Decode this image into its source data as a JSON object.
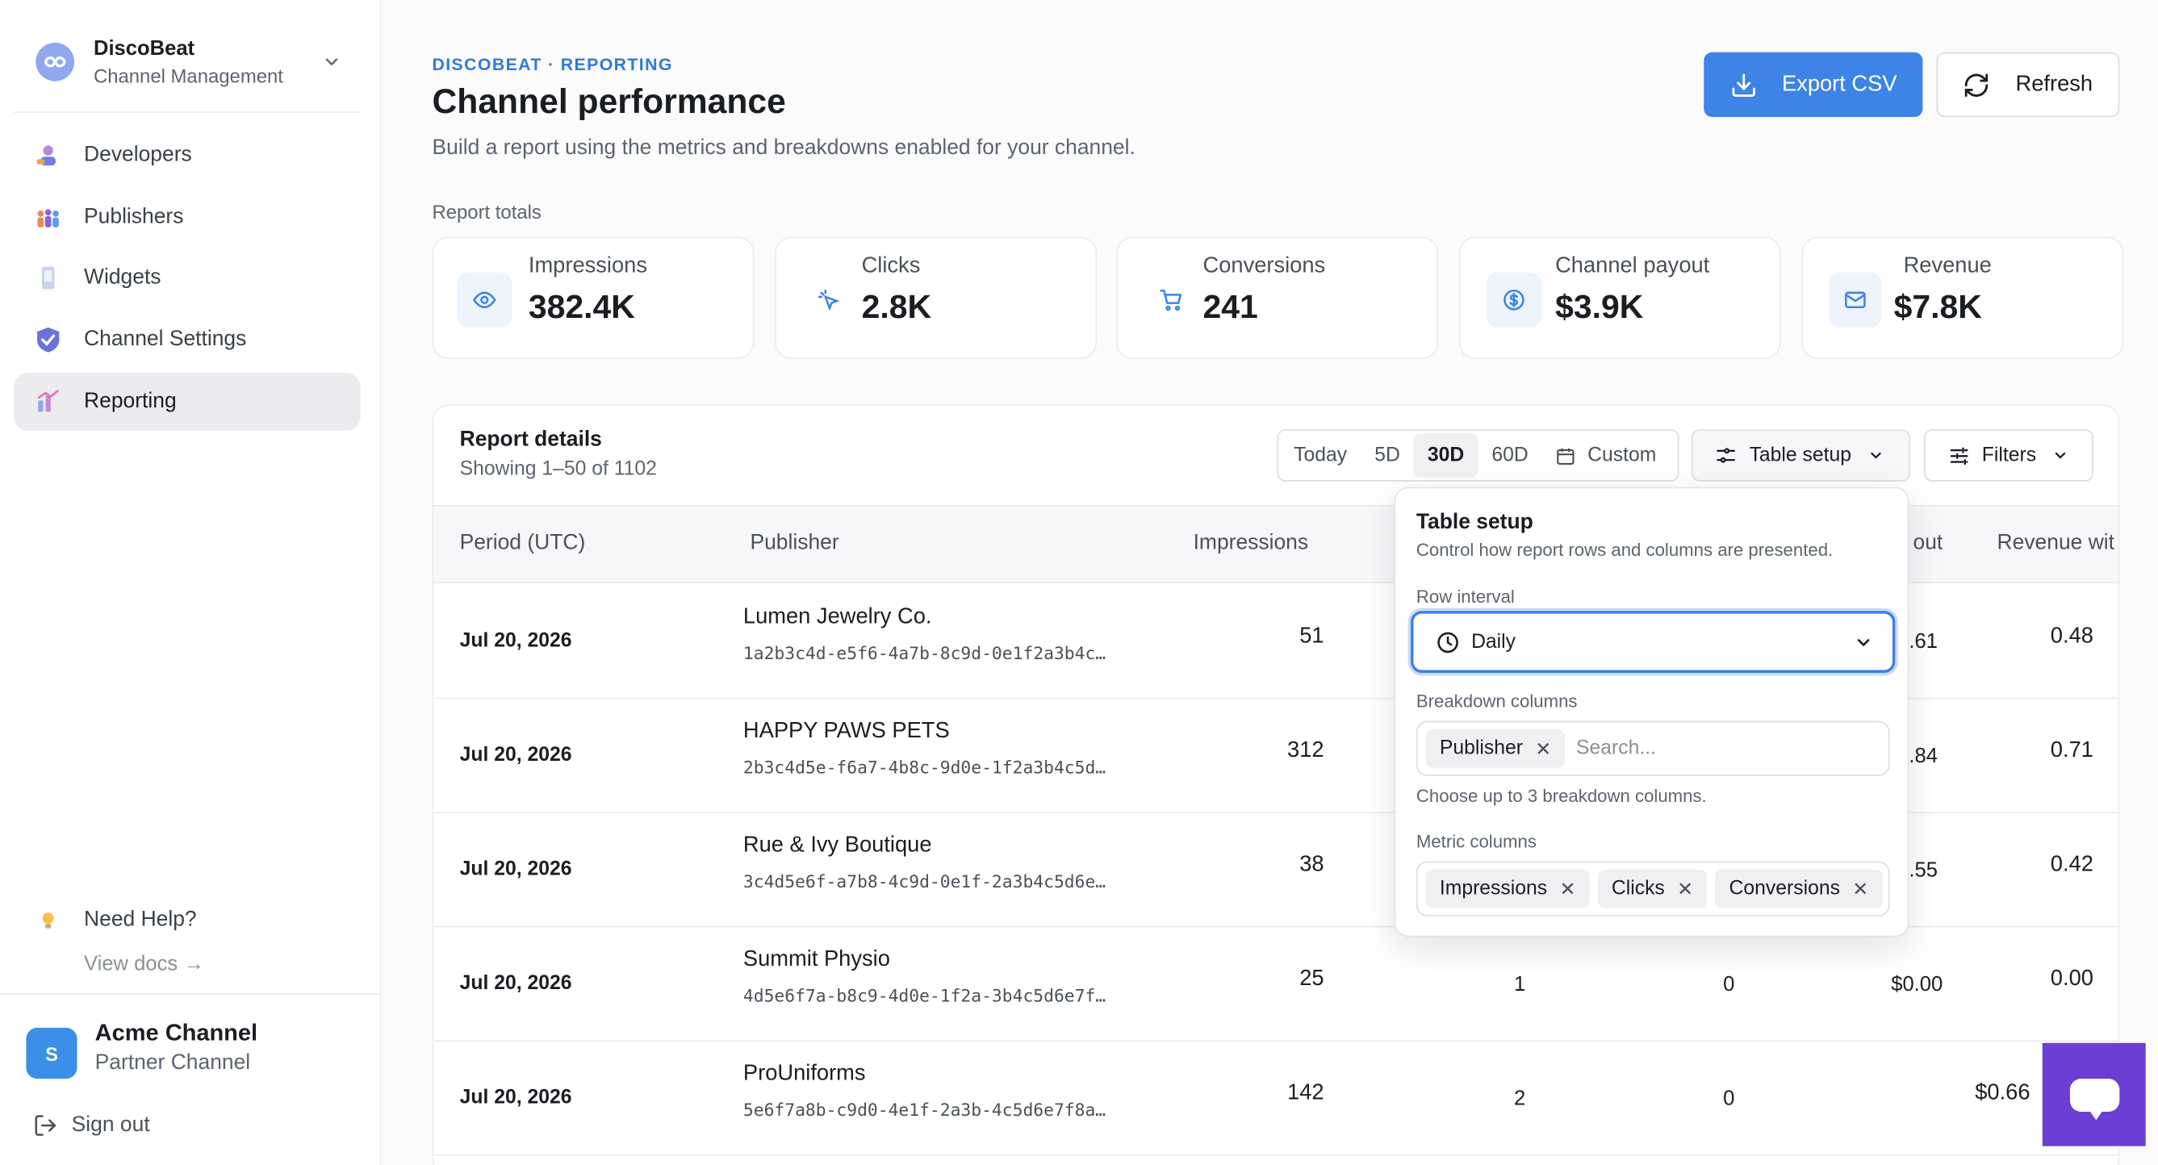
{
  "sidebar": {
    "brand": {
      "name": "DiscoBeat",
      "subtitle": "Channel Management"
    },
    "items": [
      {
        "label": "Developers",
        "icon": "developers-icon"
      },
      {
        "label": "Publishers",
        "icon": "publishers-icon"
      },
      {
        "label": "Widgets",
        "icon": "widgets-icon"
      },
      {
        "label": "Channel Settings",
        "icon": "shield-icon"
      },
      {
        "label": "Reporting",
        "icon": "reporting-icon",
        "active": true
      }
    ],
    "help": {
      "title": "Need Help?",
      "link": "View docs →"
    },
    "account": {
      "initial": "S",
      "name": "Acme Channel",
      "subtitle": "Partner Channel"
    },
    "sign_out": "Sign out"
  },
  "header": {
    "breadcrumb": "DISCOBEAT · REPORTING",
    "title": "Channel performance",
    "subtitle": "Build a report using the metrics and breakdowns enabled for your channel.",
    "export_label": "Export CSV",
    "refresh_label": "Refresh"
  },
  "totals": {
    "label": "Report totals",
    "cards": [
      {
        "label": "Impressions",
        "value": "382.4K",
        "icon": "eye-icon"
      },
      {
        "label": "Clicks",
        "value": "2.8K",
        "icon": "cursor-click-icon"
      },
      {
        "label": "Conversions",
        "value": "241",
        "icon": "cart-icon"
      },
      {
        "label": "Channel payout",
        "value": "$3.9K",
        "icon": "dollar-icon"
      },
      {
        "label": "Revenue",
        "value": "$7.8K",
        "icon": "mail-icon"
      }
    ]
  },
  "details": {
    "title": "Report details",
    "showing": "Showing 1–50 of 1102",
    "ranges": [
      "Today",
      "5D",
      "30D",
      "60D",
      "Custom"
    ],
    "selected_range": "30D",
    "table_setup_label": "Table setup",
    "filters_label": "Filters",
    "columns": [
      "Period (UTC)",
      "Publisher",
      "Impressions",
      "out",
      "Revenue wit"
    ],
    "rows": [
      {
        "period": "Jul 20, 2026",
        "publisher": "Lumen Jewelry Co.",
        "id": "1a2b3c4d-e5f6-4a7b-8c9d-0e1f2a3b4c…",
        "impressions": "51",
        "clicks": "",
        "conversions": "",
        "payout": ".61",
        "revenue": "0.48"
      },
      {
        "period": "Jul 20, 2026",
        "publisher": "HAPPY PAWS PETS",
        "id": "2b3c4d5e-f6a7-4b8c-9d0e-1f2a3b4c5d…",
        "impressions": "312",
        "clicks": "",
        "conversions": "",
        "payout": ".84",
        "revenue": "0.71"
      },
      {
        "period": "Jul 20, 2026",
        "publisher": "Rue & Ivy Boutique",
        "id": "3c4d5e6f-a7b8-4c9d-0e1f-2a3b4c5d6e…",
        "impressions": "38",
        "clicks": "",
        "conversions": "",
        "payout": ".55",
        "revenue": "0.42"
      },
      {
        "period": "Jul 20, 2026",
        "publisher": "Summit Physio",
        "id": "4d5e6f7a-b8c9-4d0e-1f2a-3b4c5d6e7f…",
        "impressions": "25",
        "clicks": "1",
        "conversions": "0",
        "payout": "$0.00",
        "revenue": "0.00"
      },
      {
        "period": "Jul 20, 2026",
        "publisher": "ProUniforms",
        "id": "5e6f7a8b-c9d0-4e1f-2a3b-4c5d6e7f8a…",
        "impressions": "142",
        "clicks": "2",
        "conversions": "0",
        "payout": "",
        "revenue": "$0.66"
      }
    ]
  },
  "table_setup": {
    "title": "Table setup",
    "subtitle": "Control how report rows and columns are presented.",
    "row_interval_label": "Row interval",
    "row_interval_value": "Daily",
    "breakdown_label": "Breakdown columns",
    "breakdown_chips": [
      "Publisher"
    ],
    "search_placeholder": "Search...",
    "breakdown_hint": "Choose up to 3 breakdown columns.",
    "metric_label": "Metric columns",
    "metric_chips": [
      "Impressions",
      "Clicks",
      "Conversions"
    ]
  },
  "colors": {
    "accent": "#3d84e6",
    "breadcrumb": "#2f7bd8",
    "chat": "#6b3fd4",
    "avatar": "#3b8fe8"
  }
}
